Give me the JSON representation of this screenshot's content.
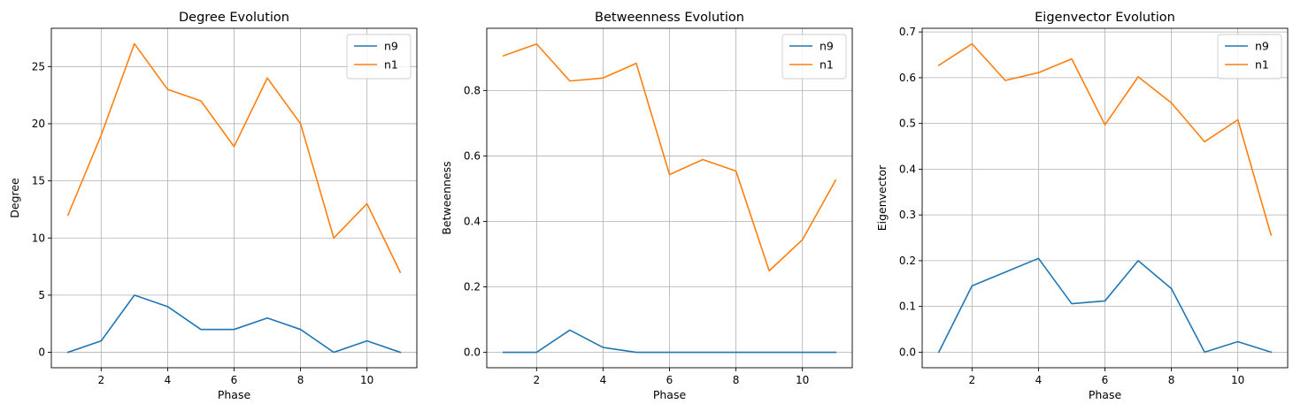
{
  "figure": {
    "colors": {
      "n9": "#1f77b4",
      "n1": "#ff7f0e",
      "grid": "#b0b0b0",
      "axis": "#000000"
    }
  },
  "chart_data": [
    {
      "type": "line",
      "title": "Degree Evolution",
      "xlabel": "Phase",
      "ylabel": "Degree",
      "x": [
        1,
        2,
        3,
        4,
        5,
        6,
        7,
        8,
        9,
        10,
        11
      ],
      "xlim": [
        0.5,
        11.5
      ],
      "ylim": [
        -1.35,
        28.35
      ],
      "xticks": [
        2,
        4,
        6,
        8,
        10
      ],
      "xtick_labels": [
        "2",
        "4",
        "6",
        "8",
        "10"
      ],
      "yticks": [
        0,
        5,
        10,
        15,
        20,
        25
      ],
      "ytick_labels": [
        "0",
        "5",
        "10",
        "15",
        "20",
        "25"
      ],
      "grid": true,
      "legend": "upper right",
      "series": [
        {
          "name": "n9",
          "color": "#1f77b4",
          "values": [
            0,
            1,
            5,
            4,
            2,
            2,
            3,
            2,
            0,
            1,
            0
          ]
        },
        {
          "name": "n1",
          "color": "#ff7f0e",
          "values": [
            12,
            19,
            27,
            23,
            22,
            18,
            24,
            20,
            10,
            13,
            7
          ]
        }
      ]
    },
    {
      "type": "line",
      "title": "Betweenness Evolution",
      "xlabel": "Phase",
      "ylabel": "Betweenness",
      "x": [
        1,
        2,
        3,
        4,
        5,
        6,
        7,
        8,
        9,
        10,
        11
      ],
      "xlim": [
        0.5,
        11.5
      ],
      "ylim": [
        -0.047,
        0.99
      ],
      "xticks": [
        2,
        4,
        6,
        8,
        10
      ],
      "xtick_labels": [
        "2",
        "4",
        "6",
        "8",
        "10"
      ],
      "yticks": [
        0.0,
        0.2,
        0.4,
        0.6,
        0.8
      ],
      "ytick_labels": [
        "0.0",
        "0.2",
        "0.4",
        "0.6",
        "0.8"
      ],
      "grid": true,
      "legend": "upper right",
      "series": [
        {
          "name": "n9",
          "color": "#1f77b4",
          "values": [
            0,
            0,
            0.068,
            0.015,
            0,
            0,
            0,
            0,
            0,
            0,
            0
          ]
        },
        {
          "name": "n1",
          "color": "#ff7f0e",
          "values": [
            0.906,
            0.942,
            0.829,
            0.838,
            0.883,
            0.543,
            0.589,
            0.554,
            0.249,
            0.344,
            0.526
          ]
        }
      ]
    },
    {
      "type": "line",
      "title": "Eigenvector Evolution",
      "xlabel": "Phase",
      "ylabel": "Eigenvector",
      "x": [
        1,
        2,
        3,
        4,
        5,
        6,
        7,
        8,
        9,
        10,
        11
      ],
      "xlim": [
        0.5,
        11.5
      ],
      "ylim": [
        -0.034,
        0.708
      ],
      "xticks": [
        2,
        4,
        6,
        8,
        10
      ],
      "xtick_labels": [
        "2",
        "4",
        "6",
        "8",
        "10"
      ],
      "yticks": [
        0.0,
        0.1,
        0.2,
        0.3,
        0.4,
        0.5,
        0.6,
        0.7
      ],
      "ytick_labels": [
        "0.0",
        "0.1",
        "0.2",
        "0.3",
        "0.4",
        "0.5",
        "0.6",
        "0.7"
      ],
      "grid": true,
      "legend": "upper right",
      "series": [
        {
          "name": "n9",
          "color": "#1f77b4",
          "values": [
            0,
            0.145,
            0.175,
            0.205,
            0.106,
            0.112,
            0.2,
            0.139,
            0,
            0.023,
            0
          ]
        },
        {
          "name": "n1",
          "color": "#ff7f0e",
          "values": [
            0.627,
            0.674,
            0.594,
            0.611,
            0.641,
            0.497,
            0.602,
            0.545,
            0.46,
            0.508,
            0.256
          ]
        }
      ]
    }
  ]
}
